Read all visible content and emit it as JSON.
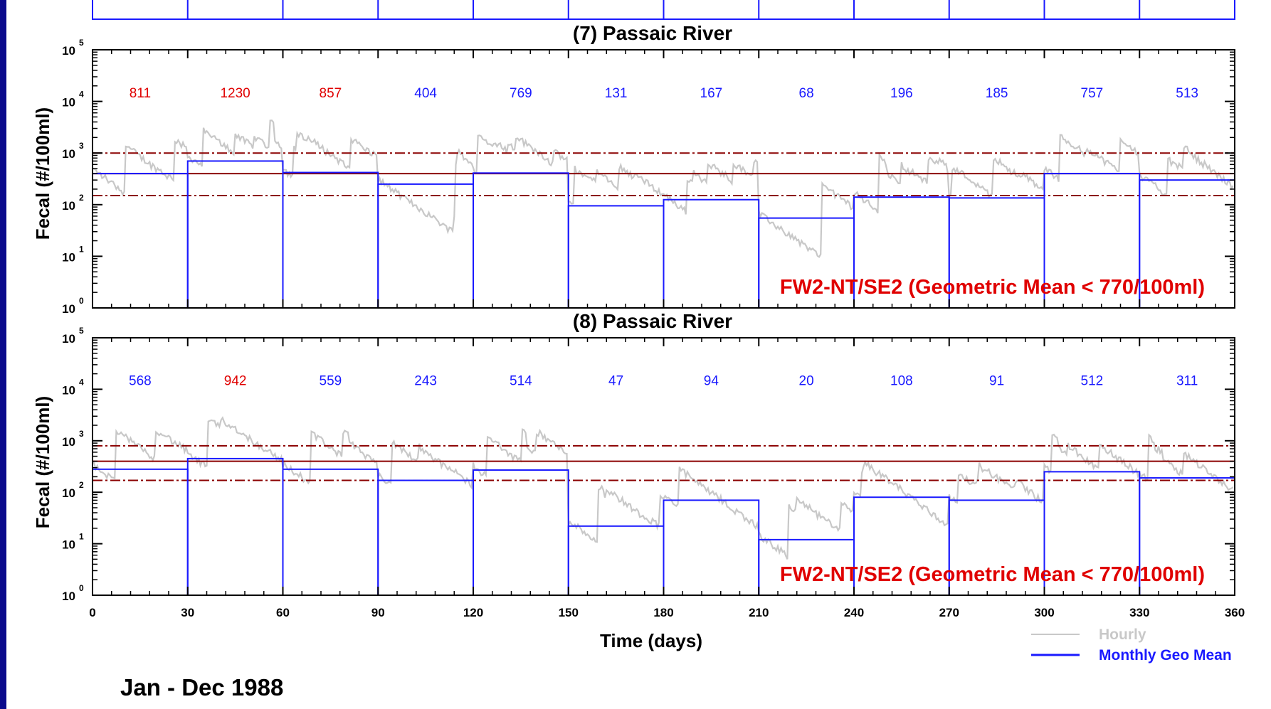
{
  "chart_data": [
    {
      "type": "line",
      "title": "(7) Passaic River",
      "xlabel": "Time (days)",
      "ylabel": "Fecal (#/100ml)",
      "xlim": [
        0,
        360
      ],
      "ylim": [
        1,
        100000
      ],
      "yscale": "log",
      "x_ticks": [
        "0",
        "30",
        "60",
        "90",
        "120",
        "150",
        "180",
        "210",
        "240",
        "270",
        "300",
        "330",
        "360"
      ],
      "y_ticks": [
        {
          "base": "10",
          "exp": "0"
        },
        {
          "base": "10",
          "exp": "1"
        },
        {
          "base": "10",
          "exp": "2"
        },
        {
          "base": "10",
          "exp": "3"
        },
        {
          "base": "10",
          "exp": "4"
        },
        {
          "base": "10",
          "exp": "5"
        }
      ],
      "month_values": [
        "811",
        "1230",
        "857",
        "404",
        "769",
        "131",
        "167",
        "68",
        "196",
        "185",
        "757",
        "513"
      ],
      "month_label_colors": [
        "#e00000",
        "#e00000",
        "#e00000",
        "#1a1aff",
        "#1a1aff",
        "#1a1aff",
        "#1a1aff",
        "#1a1aff",
        "#1a1aff",
        "#1a1aff",
        "#1a1aff",
        "#1a1aff"
      ],
      "monthly_geo_mean": [
        400,
        700,
        420,
        250,
        410,
        95,
        125,
        55,
        140,
        135,
        400,
        300
      ],
      "reference_lines": [
        1000,
        400,
        150
      ],
      "standard_label": "FW2-NT/SE2 (Geometric Mean < 770/100ml)",
      "series": [
        {
          "name": "Hourly"
        },
        {
          "name": "Monthly Geo Mean"
        }
      ],
      "grid": false
    },
    {
      "type": "line",
      "title": "(8) Passaic River",
      "xlabel": "Time (days)",
      "ylabel": "Fecal (#/100ml)",
      "xlim": [
        0,
        360
      ],
      "ylim": [
        1,
        100000
      ],
      "yscale": "log",
      "x_ticks": [
        "0",
        "30",
        "60",
        "90",
        "120",
        "150",
        "180",
        "210",
        "240",
        "270",
        "300",
        "330",
        "360"
      ],
      "y_ticks": [
        {
          "base": "10",
          "exp": "0"
        },
        {
          "base": "10",
          "exp": "1"
        },
        {
          "base": "10",
          "exp": "2"
        },
        {
          "base": "10",
          "exp": "3"
        },
        {
          "base": "10",
          "exp": "4"
        },
        {
          "base": "10",
          "exp": "5"
        }
      ],
      "month_values": [
        "568",
        "942",
        "559",
        "243",
        "514",
        "47",
        "94",
        "20",
        "108",
        "91",
        "512",
        "311"
      ],
      "month_label_colors": [
        "#1a1aff",
        "#e00000",
        "#1a1aff",
        "#1a1aff",
        "#1a1aff",
        "#1a1aff",
        "#1a1aff",
        "#1a1aff",
        "#1a1aff",
        "#1a1aff",
        "#1a1aff",
        "#1a1aff"
      ],
      "monthly_geo_mean": [
        280,
        450,
        280,
        170,
        270,
        22,
        70,
        12,
        80,
        70,
        250,
        190
      ],
      "reference_lines": [
        800,
        400,
        170
      ],
      "standard_label": "FW2-NT/SE2 (Geometric Mean < 770/100ml)",
      "series": [
        {
          "name": "Hourly"
        },
        {
          "name": "Monthly Geo Mean"
        }
      ],
      "grid": false
    }
  ],
  "legend": {
    "hourly": "Hourly",
    "monthly": "Monthly Geo Mean"
  },
  "colors": {
    "hourly": "#c8c8c8",
    "monthly": "#1a1aff",
    "reference": "#8b0000",
    "exceed": "#e00000",
    "ok": "#1a1aff"
  },
  "period_label": "Jan - Dec 1988"
}
